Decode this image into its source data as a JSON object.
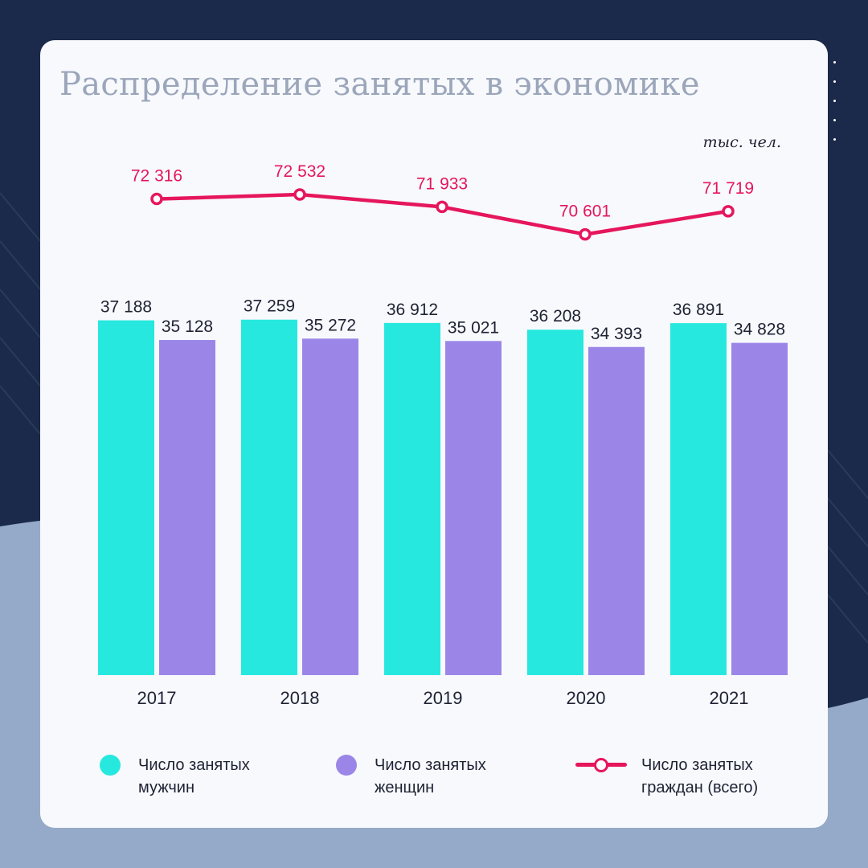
{
  "title": "Распределение занятых в экономике",
  "unit": "тыс. чел.",
  "colors": {
    "men": "#27e8de",
    "women": "#9b86e8",
    "total": "#e6165c",
    "background_dark": "#1b2a4a",
    "background_light": "#95aac8",
    "card": "#f7f9fc"
  },
  "chart_data": {
    "type": "bar",
    "categories": [
      "2017",
      "2018",
      "2019",
      "2020",
      "2021"
    ],
    "series": [
      {
        "name": "Число занятых мужчин",
        "type": "bar",
        "values": [
          37188,
          37259,
          36912,
          36208,
          36891
        ],
        "labels": [
          "37 188",
          "37 259",
          "36 912",
          "36 208",
          "36 891"
        ]
      },
      {
        "name": "Число занятых женщин",
        "type": "bar",
        "values": [
          35128,
          35272,
          35021,
          34393,
          34828
        ],
        "labels": [
          "35 128",
          "35 272",
          "35 021",
          "34 393",
          "34 828"
        ]
      },
      {
        "name": "Число занятых граждан (всего)",
        "type": "line",
        "values": [
          72316,
          72532,
          71933,
          70601,
          71719
        ],
        "labels": [
          "72 316",
          "72 532",
          "71 933",
          "70 601",
          "71 719"
        ]
      }
    ],
    "unit": "тыс. чел.",
    "grid": false,
    "legend_position": "bottom"
  },
  "legend": [
    {
      "line1": "Число занятых",
      "line2": "мужчин",
      "marker": "dot",
      "color": "#27e8de"
    },
    {
      "line1": "Число занятых",
      "line2": "женщин",
      "marker": "dot",
      "color": "#9b86e8"
    },
    {
      "line1": "Число занятых",
      "line2": "граждан (всего)",
      "marker": "line",
      "color": "#e6165c"
    }
  ]
}
